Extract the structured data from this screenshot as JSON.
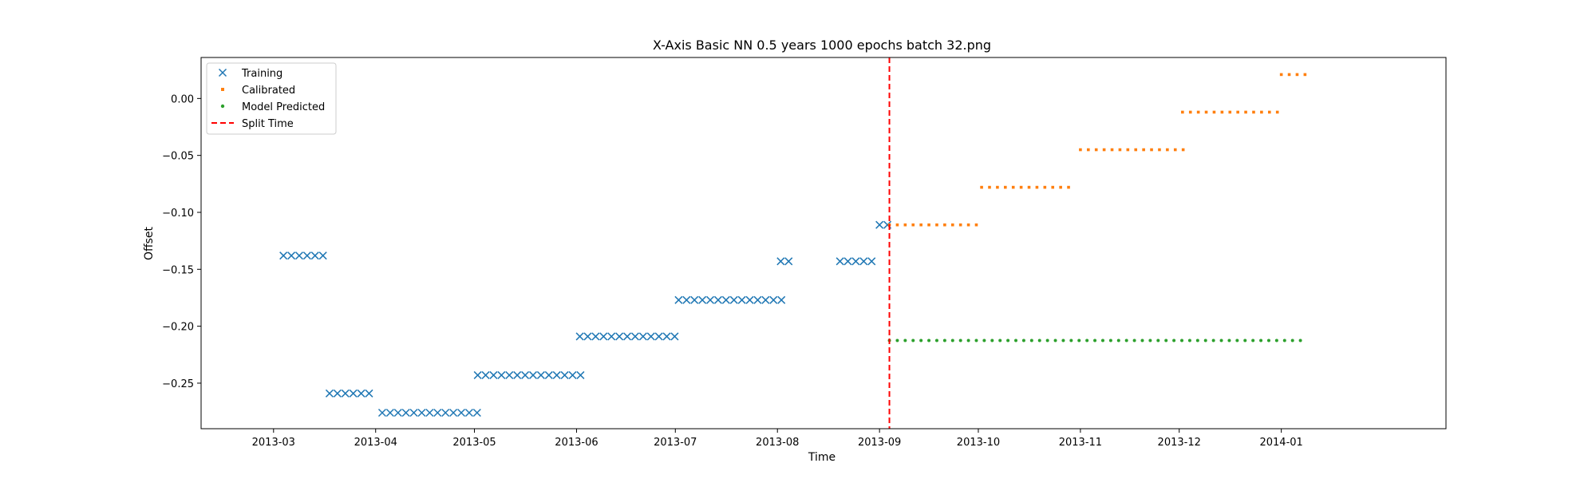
{
  "chart_data": {
    "type": "scatter",
    "title": "X-Axis Basic NN 0.5 years 1000 epochs batch 32.png",
    "xlabel": "Time",
    "ylabel": "Offset",
    "xlim": [
      "2013-02-07",
      "2014-02-20"
    ],
    "ylim": [
      -0.29,
      0.036
    ],
    "x_ticks": [
      "2013-03",
      "2013-04",
      "2013-05",
      "2013-06",
      "2013-07",
      "2013-08",
      "2013-09",
      "2013-10",
      "2013-11",
      "2013-12",
      "2014-01"
    ],
    "y_ticks": [
      0.0,
      -0.05,
      -0.1,
      -0.15,
      -0.2,
      -0.25
    ],
    "y_tick_labels": [
      "0.00",
      "−0.05",
      "−0.10",
      "−0.15",
      "−0.20",
      "−0.25"
    ],
    "grid": false,
    "legend_position": "top-left",
    "split_time": "2013-09-04",
    "series": [
      {
        "name": "Training",
        "marker": "x",
        "color": "#1f77b4",
        "segments": [
          {
            "start": "2013-03-04",
            "count": 6,
            "step_days": 2.4,
            "value": -0.138
          },
          {
            "start": "2013-03-18",
            "count": 6,
            "step_days": 2.4,
            "value": -0.259
          },
          {
            "start": "2013-04-03",
            "count": 13,
            "step_days": 2.4,
            "value": -0.276
          },
          {
            "start": "2013-05-02",
            "count": 14,
            "step_days": 2.4,
            "value": -0.243
          },
          {
            "start": "2013-06-02",
            "count": 13,
            "step_days": 2.4,
            "value": -0.209
          },
          {
            "start": "2013-07-02",
            "count": 14,
            "step_days": 2.4,
            "value": -0.177
          },
          {
            "start": "2013-08-02",
            "count": 2,
            "step_days": 2.4,
            "value": -0.143
          },
          {
            "start": "2013-08-20",
            "count": 5,
            "step_days": 2.4,
            "value": -0.143
          },
          {
            "start": "2013-09-01",
            "count": 2,
            "step_days": 2.4,
            "value": -0.111
          }
        ]
      },
      {
        "name": "Calibrated",
        "marker": "square",
        "color": "#ff7f0e",
        "segments": [
          {
            "start": "2013-09-04",
            "count": 12,
            "step_days": 2.4,
            "value": -0.111
          },
          {
            "start": "2013-10-02",
            "count": 12,
            "step_days": 2.4,
            "value": -0.078
          },
          {
            "start": "2013-11-01",
            "count": 14,
            "step_days": 2.4,
            "value": -0.045
          },
          {
            "start": "2013-12-02",
            "count": 13,
            "step_days": 2.4,
            "value": -0.012
          },
          {
            "start": "2014-01-01",
            "count": 4,
            "step_days": 2.4,
            "value": 0.021
          }
        ]
      },
      {
        "name": "Model Predicted",
        "marker": "dot",
        "color": "#2ca02c",
        "segments": [
          {
            "start": "2013-09-04",
            "count": 53,
            "step_days": 2.4,
            "value": -0.2125
          }
        ]
      },
      {
        "name": "Split Time",
        "marker": "dashed-line",
        "color": "#ff0000"
      }
    ]
  }
}
